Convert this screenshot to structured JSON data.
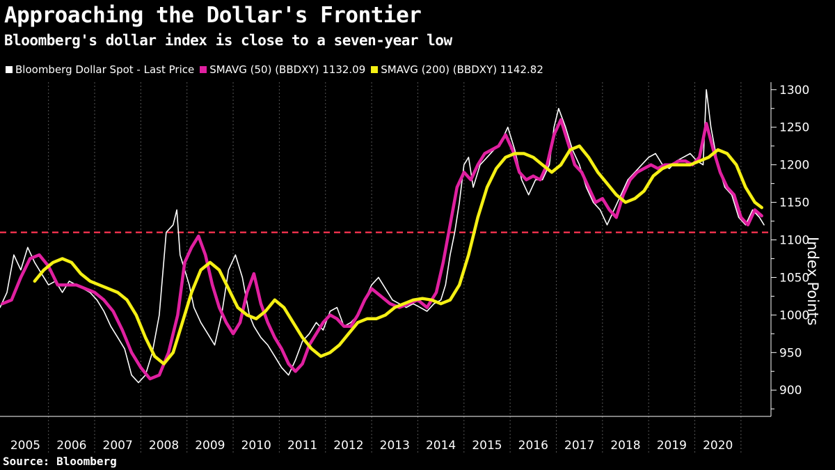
{
  "title": "Approaching the Dollar's Frontier",
  "subtitle": "Bloomberg's dollar index is close to a seven-year low",
  "source": "Source: Bloomberg",
  "colors": {
    "background": "#000000",
    "price": "#ffffff",
    "sma50": "#e020a0",
    "sma200": "#f5f014",
    "reference_line": "#e8304a",
    "grid": "#555555"
  },
  "chart_data": {
    "type": "line",
    "title": "Approaching the Dollar's Frontier",
    "subtitle": "Bloomberg's dollar index is close to a seven-year low",
    "ylabel": "Index Points",
    "xlabel": "",
    "ylim": [
      865,
      1310
    ],
    "y_ticks": [
      900,
      950,
      1000,
      1050,
      1100,
      1150,
      1200,
      1250,
      1300
    ],
    "x_ticks": [
      "2005",
      "2006",
      "2007",
      "2008",
      "2009",
      "2010",
      "2011",
      "2012",
      "2013",
      "2014",
      "2015",
      "2016",
      "2017",
      "2018",
      "2019",
      "2020"
    ],
    "grid": "vertical dashed",
    "legend_position": "top-left",
    "reference_line": {
      "y": 1110,
      "style": "dashed red"
    },
    "series": [
      {
        "name": "Bloomberg Dollar Spot - Last Price",
        "color": "#ffffff",
        "x": [
          2004.95,
          2005.1,
          2005.25,
          2005.4,
          2005.55,
          2005.7,
          2005.85,
          2006.0,
          2006.15,
          2006.3,
          2006.45,
          2006.6,
          2006.75,
          2006.9,
          2007.05,
          2007.2,
          2007.35,
          2007.5,
          2007.65,
          2007.8,
          2007.95,
          2008.1,
          2008.25,
          2008.4,
          2008.55,
          2008.7,
          2008.78,
          2008.85,
          2008.95,
          2009.05,
          2009.15,
          2009.3,
          2009.45,
          2009.6,
          2009.75,
          2009.9,
          2010.05,
          2010.2,
          2010.35,
          2010.45,
          2010.6,
          2010.75,
          2010.9,
          2011.05,
          2011.2,
          2011.35,
          2011.5,
          2011.65,
          2011.8,
          2011.95,
          2012.1,
          2012.25,
          2012.4,
          2012.55,
          2012.7,
          2012.85,
          2013.0,
          2013.15,
          2013.3,
          2013.45,
          2013.6,
          2013.75,
          2013.9,
          2014.05,
          2014.2,
          2014.35,
          2014.5,
          2014.6,
          2014.7,
          2014.8,
          2014.9,
          2015.0,
          2015.1,
          2015.2,
          2015.35,
          2015.5,
          2015.65,
          2015.8,
          2015.95,
          2016.1,
          2016.25,
          2016.4,
          2016.55,
          2016.7,
          2016.85,
          2016.95,
          2017.05,
          2017.2,
          2017.35,
          2017.5,
          2017.65,
          2017.8,
          2017.95,
          2018.1,
          2018.25,
          2018.4,
          2018.55,
          2018.7,
          2018.85,
          2019.0,
          2019.15,
          2019.3,
          2019.45,
          2019.6,
          2019.75,
          2019.9,
          2020.05,
          2020.18,
          2020.25,
          2020.35,
          2020.5,
          2020.65,
          2020.8,
          2020.95,
          2021.1,
          2021.25,
          2021.4,
          2021.5
        ],
        "values": [
          1010,
          1030,
          1080,
          1060,
          1090,
          1070,
          1055,
          1040,
          1045,
          1030,
          1045,
          1040,
          1035,
          1030,
          1020,
          1005,
          985,
          970,
          955,
          920,
          910,
          920,
          950,
          1000,
          1110,
          1120,
          1140,
          1080,
          1060,
          1040,
          1010,
          990,
          975,
          960,
          1000,
          1060,
          1080,
          1050,
          1000,
          985,
          970,
          960,
          945,
          930,
          920,
          940,
          965,
          975,
          990,
          980,
          1005,
          1010,
          985,
          990,
          1000,
          1020,
          1040,
          1050,
          1035,
          1020,
          1015,
          1010,
          1015,
          1010,
          1005,
          1015,
          1020,
          1040,
          1080,
          1110,
          1150,
          1200,
          1210,
          1170,
          1200,
          1210,
          1220,
          1230,
          1250,
          1220,
          1180,
          1160,
          1180,
          1180,
          1200,
          1250,
          1275,
          1250,
          1220,
          1200,
          1170,
          1150,
          1140,
          1120,
          1140,
          1160,
          1180,
          1190,
          1200,
          1210,
          1215,
          1200,
          1195,
          1205,
          1210,
          1215,
          1205,
          1200,
          1300,
          1250,
          1200,
          1170,
          1160,
          1130,
          1120,
          1140,
          1130,
          1120
        ]
      },
      {
        "name": "SMAVG (50) (BBDXY) 1132.09",
        "color": "#e020a0",
        "x": [
          2005.0,
          2005.2,
          2005.4,
          2005.6,
          2005.8,
          2006.0,
          2006.2,
          2006.4,
          2006.6,
          2006.8,
          2007.0,
          2007.2,
          2007.4,
          2007.6,
          2007.8,
          2008.0,
          2008.2,
          2008.4,
          2008.6,
          2008.8,
          2008.95,
          2009.1,
          2009.25,
          2009.4,
          2009.55,
          2009.7,
          2009.85,
          2010.0,
          2010.15,
          2010.3,
          2010.45,
          2010.6,
          2010.75,
          2010.9,
          2011.05,
          2011.2,
          2011.35,
          2011.5,
          2011.65,
          2011.8,
          2011.95,
          2012.1,
          2012.25,
          2012.4,
          2012.55,
          2012.7,
          2012.85,
          2013.0,
          2013.2,
          2013.4,
          2013.6,
          2013.8,
          2014.0,
          2014.2,
          2014.4,
          2014.55,
          2014.7,
          2014.85,
          2015.0,
          2015.15,
          2015.3,
          2015.45,
          2015.6,
          2015.75,
          2015.9,
          2016.05,
          2016.2,
          2016.35,
          2016.5,
          2016.65,
          2016.8,
          2016.95,
          2017.1,
          2017.25,
          2017.4,
          2017.55,
          2017.7,
          2017.85,
          2018.0,
          2018.15,
          2018.3,
          2018.45,
          2018.6,
          2018.75,
          2018.9,
          2019.05,
          2019.2,
          2019.35,
          2019.5,
          2019.65,
          2019.8,
          2019.95,
          2020.1,
          2020.25,
          2020.4,
          2020.55,
          2020.7,
          2020.85,
          2021.0,
          2021.15,
          2021.3,
          2021.45
        ],
        "values": [
          1015,
          1020,
          1050,
          1075,
          1080,
          1065,
          1040,
          1040,
          1040,
          1035,
          1030,
          1020,
          1005,
          980,
          950,
          930,
          915,
          920,
          950,
          1000,
          1070,
          1090,
          1105,
          1080,
          1040,
          1010,
          990,
          975,
          990,
          1030,
          1055,
          1015,
          990,
          970,
          955,
          935,
          925,
          935,
          960,
          975,
          990,
          1000,
          995,
          985,
          985,
          1000,
          1020,
          1035,
          1025,
          1015,
          1010,
          1015,
          1020,
          1010,
          1030,
          1070,
          1120,
          1170,
          1190,
          1180,
          1200,
          1215,
          1220,
          1225,
          1240,
          1220,
          1190,
          1180,
          1185,
          1180,
          1200,
          1240,
          1260,
          1230,
          1200,
          1190,
          1170,
          1150,
          1155,
          1140,
          1130,
          1160,
          1180,
          1190,
          1195,
          1200,
          1195,
          1200,
          1200,
          1205,
          1205,
          1200,
          1210,
          1255,
          1220,
          1190,
          1170,
          1160,
          1130,
          1120,
          1140,
          1132
        ]
      },
      {
        "name": "SMAVG (200) (BBDXY) 1142.82",
        "color": "#f5f014",
        "x": [
          2005.7,
          2005.9,
          2006.1,
          2006.3,
          2006.5,
          2006.7,
          2006.9,
          2007.1,
          2007.3,
          2007.5,
          2007.7,
          2007.9,
          2008.1,
          2008.3,
          2008.5,
          2008.7,
          2008.9,
          2009.1,
          2009.3,
          2009.5,
          2009.7,
          2009.9,
          2010.1,
          2010.3,
          2010.5,
          2010.7,
          2010.9,
          2011.1,
          2011.3,
          2011.5,
          2011.7,
          2011.9,
          2012.1,
          2012.3,
          2012.5,
          2012.7,
          2012.9,
          2013.1,
          2013.3,
          2013.5,
          2013.7,
          2013.9,
          2014.1,
          2014.3,
          2014.5,
          2014.7,
          2014.9,
          2015.1,
          2015.3,
          2015.5,
          2015.7,
          2015.9,
          2016.1,
          2016.3,
          2016.5,
          2016.7,
          2016.9,
          2017.1,
          2017.3,
          2017.5,
          2017.7,
          2017.9,
          2018.1,
          2018.3,
          2018.5,
          2018.7,
          2018.9,
          2019.1,
          2019.3,
          2019.5,
          2019.7,
          2019.9,
          2020.1,
          2020.3,
          2020.5,
          2020.7,
          2020.9,
          2021.1,
          2021.3,
          2021.45
        ],
        "values": [
          1045,
          1060,
          1070,
          1075,
          1070,
          1055,
          1045,
          1040,
          1035,
          1030,
          1020,
          1000,
          970,
          945,
          935,
          950,
          990,
          1030,
          1060,
          1070,
          1060,
          1035,
          1010,
          1000,
          995,
          1005,
          1020,
          1010,
          990,
          970,
          955,
          945,
          950,
          960,
          975,
          990,
          995,
          995,
          1000,
          1010,
          1015,
          1020,
          1022,
          1020,
          1015,
          1020,
          1040,
          1080,
          1130,
          1170,
          1195,
          1210,
          1215,
          1215,
          1210,
          1200,
          1190,
          1200,
          1220,
          1225,
          1210,
          1190,
          1175,
          1160,
          1150,
          1155,
          1165,
          1185,
          1195,
          1200,
          1200,
          1200,
          1205,
          1210,
          1220,
          1215,
          1200,
          1170,
          1150,
          1143
        ]
      }
    ]
  },
  "legend": [
    {
      "label": "Bloomberg Dollar Spot - Last Price",
      "color": "#ffffff"
    },
    {
      "label": "SMAVG (50) (BBDXY) 1132.09",
      "color": "#e020a0"
    },
    {
      "label": "SMAVG (200) (BBDXY) 1142.82",
      "color": "#f5f014"
    }
  ]
}
